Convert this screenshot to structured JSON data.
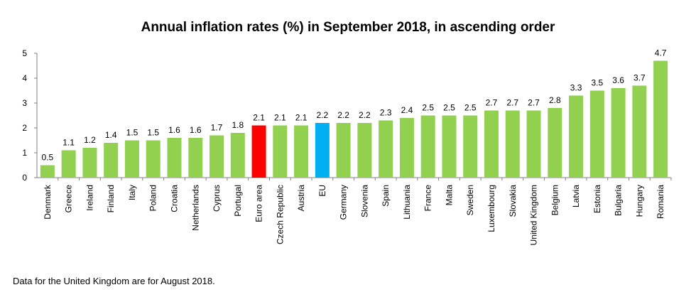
{
  "chart_data": {
    "type": "bar",
    "title": "Annual inflation rates (%) in September 2018, in ascending order",
    "xlabel": "",
    "ylabel": "",
    "ylim": [
      0,
      5
    ],
    "yticks": [
      0,
      1,
      2,
      3,
      4,
      5
    ],
    "grid": false,
    "categories": [
      "Denmark",
      "Greece",
      "Ireland",
      "Finland",
      "Italy",
      "Poland",
      "Croatia",
      "Netherlands",
      "Cyprus",
      "Portugal",
      "Euro area",
      "Czech Republic",
      "Austria",
      "EU",
      "Germany",
      "Slovenia",
      "Spain",
      "Lithuania",
      "France",
      "Malta",
      "Sweden",
      "Luxembourg",
      "Slovakia",
      "United Kingdom",
      "Belgium",
      "Latvia",
      "Estonia",
      "Bulgaria",
      "Hungary",
      "Romania"
    ],
    "values": [
      0.5,
      1.1,
      1.2,
      1.4,
      1.5,
      1.5,
      1.6,
      1.6,
      1.7,
      1.8,
      2.1,
      2.1,
      2.1,
      2.2,
      2.2,
      2.2,
      2.3,
      2.4,
      2.5,
      2.5,
      2.5,
      2.7,
      2.7,
      2.7,
      2.8,
      3.3,
      3.5,
      3.6,
      3.7,
      4.7
    ],
    "value_labels": [
      "0.5",
      "1.1",
      "1.2",
      "1.4",
      "1.5",
      "1.5",
      "1.6",
      "1.6",
      "1.7",
      "1.8",
      "2.1",
      "2.1",
      "2.1",
      "2.2",
      "2.2",
      "2.2",
      "2.3",
      "2.4",
      "2.5",
      "2.5",
      "2.5",
      "2.7",
      "2.7",
      "2.7",
      "2.8",
      "3.3",
      "3.5",
      "3.6",
      "3.7",
      "4.7"
    ],
    "colors": {
      "default": "#92d050",
      "highlight": {
        "Euro area": "#ff0000",
        "EU": "#00b0f0"
      },
      "axis": "#808080"
    }
  },
  "footnote": "Data for the United Kingdom are for August 2018."
}
